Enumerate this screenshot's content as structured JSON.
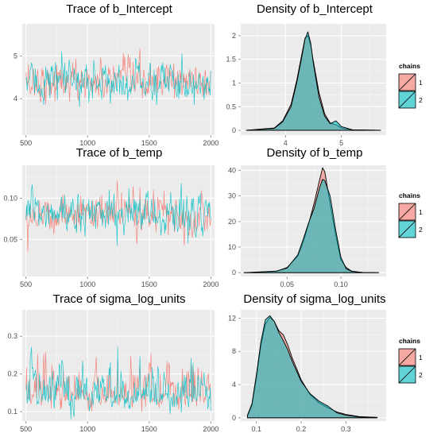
{
  "chart_data": [
    {
      "type": "line",
      "panel": "trace",
      "title": "Trace of b_Intercept",
      "xlabel": "",
      "ylabel": "",
      "xlim": [
        470,
        2030
      ],
      "ylim": [
        3.15,
        5.75
      ],
      "xticks": [
        500,
        1000,
        1500,
        2000
      ],
      "yticks": [
        4,
        5
      ],
      "center": 4.4,
      "spread": 0.22,
      "series": [
        {
          "name": "1",
          "color": "#F8766D"
        },
        {
          "name": "2",
          "color": "#00BFC4"
        }
      ]
    },
    {
      "type": "area",
      "panel": "density",
      "title": "Density of b_Intercept",
      "xlabel": "",
      "ylabel": "",
      "xlim": [
        3.2,
        5.8
      ],
      "ylim": [
        -0.1,
        2.25
      ],
      "xticks": [
        4,
        5
      ],
      "yticks": [
        0.0,
        0.5,
        1.0,
        1.5,
        2.0
      ],
      "series": [
        {
          "name": "1",
          "x": [
            3.3,
            3.8,
            3.95,
            4.1,
            4.2,
            4.3,
            4.35,
            4.4,
            4.45,
            4.5,
            4.6,
            4.7,
            4.8,
            4.9,
            5.0,
            5.2,
            5.7
          ],
          "y": [
            0.0,
            0.05,
            0.2,
            0.55,
            1.05,
            1.65,
            1.95,
            2.0,
            1.8,
            1.45,
            0.8,
            0.35,
            0.15,
            0.12,
            0.05,
            0.01,
            0.0
          ]
        },
        {
          "name": "2",
          "x": [
            3.3,
            3.8,
            3.95,
            4.1,
            4.2,
            4.3,
            4.35,
            4.4,
            4.45,
            4.5,
            4.6,
            4.7,
            4.8,
            4.9,
            5.0,
            5.2,
            5.7
          ],
          "y": [
            0.0,
            0.04,
            0.18,
            0.5,
            1.0,
            1.6,
            1.93,
            2.08,
            1.85,
            1.4,
            0.7,
            0.3,
            0.14,
            0.2,
            0.08,
            0.01,
            0.0
          ]
        }
      ]
    },
    {
      "type": "line",
      "panel": "trace",
      "title": "Trace of b_temp",
      "xlabel": "",
      "ylabel": "",
      "xlim": [
        470,
        2030
      ],
      "ylim": [
        0.005,
        0.14
      ],
      "xticks": [
        500,
        1000,
        1500,
        2000
      ],
      "yticks": [
        0.05,
        0.1
      ],
      "ytick_labels": [
        "0.05",
        "0.10"
      ],
      "center": 0.082,
      "spread": 0.012,
      "series": [
        {
          "name": "1",
          "color": "#F8766D"
        },
        {
          "name": "2",
          "color": "#00BFC4"
        }
      ]
    },
    {
      "type": "area",
      "panel": "density",
      "title": "Density of b_temp",
      "xlabel": "",
      "ylabel": "",
      "xlim": [
        0.007,
        0.142
      ],
      "ylim": [
        -1.5,
        42
      ],
      "xticks": [
        0.05,
        0.1
      ],
      "xtick_labels": [
        "0.05",
        "0.10"
      ],
      "yticks": [
        0,
        10,
        20,
        30,
        40
      ],
      "series": [
        {
          "name": "1",
          "x": [
            0.01,
            0.04,
            0.05,
            0.06,
            0.065,
            0.07,
            0.075,
            0.08,
            0.083,
            0.085,
            0.09,
            0.095,
            0.1,
            0.105,
            0.11,
            0.12,
            0.135
          ],
          "y": [
            0.0,
            0.5,
            2.0,
            6.5,
            12.0,
            19.0,
            27.0,
            36.0,
            41.0,
            39.5,
            27.0,
            15.0,
            5.0,
            2.0,
            0.6,
            0.1,
            0.0
          ]
        },
        {
          "name": "2",
          "x": [
            0.01,
            0.04,
            0.05,
            0.06,
            0.065,
            0.07,
            0.075,
            0.08,
            0.083,
            0.085,
            0.09,
            0.095,
            0.1,
            0.105,
            0.11,
            0.12,
            0.135
          ],
          "y": [
            0.0,
            0.6,
            1.8,
            7.0,
            13.0,
            19.5,
            25.0,
            33.0,
            36.5,
            36.0,
            30.0,
            17.0,
            6.0,
            1.5,
            0.5,
            0.1,
            0.0
          ]
        }
      ]
    },
    {
      "type": "line",
      "panel": "trace",
      "title": "Trace of sigma_log_units",
      "xlabel": "",
      "ylabel": "",
      "xlim": [
        470,
        2030
      ],
      "ylim": [
        0.075,
        0.37
      ],
      "xticks": [
        500,
        1000,
        1500,
        2000
      ],
      "yticks": [
        0.1,
        0.2,
        0.3
      ],
      "ytick_labels": [
        "0.1",
        "0.2",
        "0.3"
      ],
      "center": 0.145,
      "spread": 0.03,
      "series": [
        {
          "name": "1",
          "color": "#F8766D"
        },
        {
          "name": "2",
          "color": "#00BFC4"
        }
      ]
    },
    {
      "type": "area",
      "panel": "density",
      "title": "Density of sigma_log_units",
      "xlabel": "",
      "ylabel": "",
      "xlim": [
        0.065,
        0.39
      ],
      "ylim": [
        -0.4,
        13
      ],
      "xticks": [
        0.1,
        0.2,
        0.3
      ],
      "xtick_labels": [
        "0.1",
        "0.2",
        "0.3"
      ],
      "yticks": [
        0,
        4,
        8,
        12
      ],
      "series": [
        {
          "name": "1",
          "x": [
            0.08,
            0.09,
            0.1,
            0.11,
            0.12,
            0.13,
            0.14,
            0.15,
            0.16,
            0.17,
            0.18,
            0.2,
            0.22,
            0.24,
            0.26,
            0.28,
            0.3,
            0.33,
            0.37
          ],
          "y": [
            0.2,
            1.5,
            4.8,
            8.7,
            11.3,
            12.1,
            11.6,
            10.5,
            10.0,
            8.8,
            7.2,
            4.6,
            2.8,
            1.8,
            1.2,
            0.7,
            0.4,
            0.15,
            0.05
          ]
        },
        {
          "name": "2",
          "x": [
            0.08,
            0.09,
            0.1,
            0.11,
            0.12,
            0.13,
            0.14,
            0.15,
            0.16,
            0.17,
            0.18,
            0.2,
            0.22,
            0.24,
            0.26,
            0.28,
            0.3,
            0.33,
            0.37
          ],
          "y": [
            0.3,
            1.7,
            5.2,
            9.1,
            11.8,
            12.3,
            11.6,
            10.3,
            9.3,
            8.2,
            6.8,
            4.4,
            2.9,
            2.0,
            1.4,
            0.6,
            0.3,
            0.1,
            0.05
          ]
        }
      ]
    }
  ],
  "legend": {
    "title": "chains",
    "items": [
      {
        "label": "1",
        "fill": "#F8766D"
      },
      {
        "label": "2",
        "fill": "#00BFC4"
      }
    ]
  },
  "colors": {
    "panel_background": "#EBEBEB",
    "grid_major": "#FFFFFF",
    "chain_1": "#F8766D",
    "chain_2": "#00BFC4"
  }
}
